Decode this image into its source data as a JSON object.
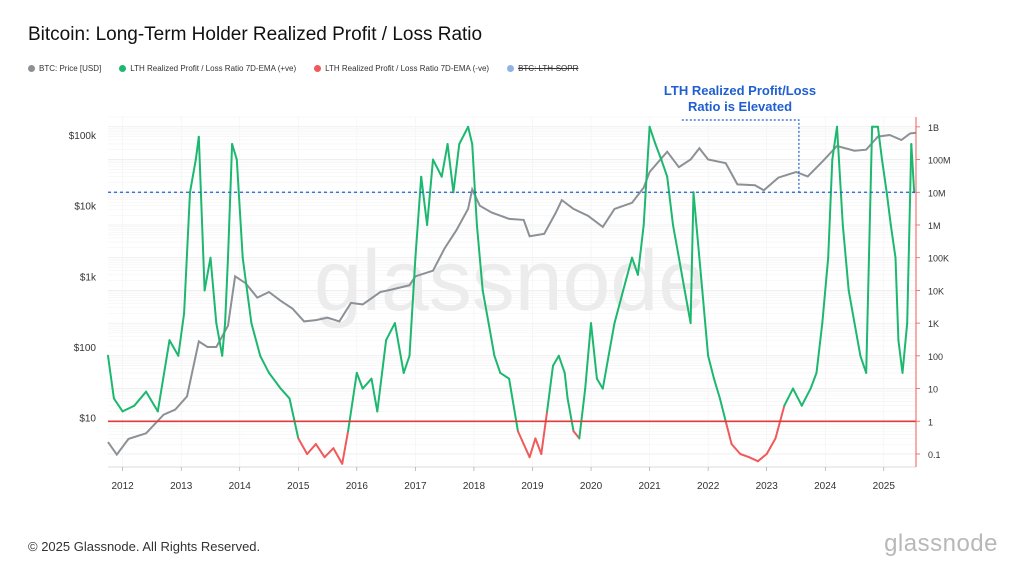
{
  "title": "Bitcoin: Long-Term Holder Realized Profit / Loss Ratio",
  "legend": [
    {
      "label": "BTC: Price [USD]",
      "color": "#8c9196",
      "struck": false
    },
    {
      "label": "LTH Realized Profit / Loss Ratio 7D-EMA (+ve)",
      "color": "#1db86f",
      "struck": false
    },
    {
      "label": "LTH Realized Profit / Loss Ratio 7D-EMA (-ve)",
      "color": "#f05a5a",
      "struck": false
    },
    {
      "label": "BTC: LTH-SOPR",
      "color": "#8fb2e8",
      "struck": true
    }
  ],
  "annotation": {
    "line1": "LTH Realized Profit/Loss",
    "line2": "Ratio is Elevated"
  },
  "watermark": "glassnode",
  "footer": "© 2025 Glassnode. All Rights Reserved.",
  "brand": "glassnode",
  "chart_data": {
    "type": "line",
    "title": "Bitcoin: Long-Term Holder Realized Profit / Loss Ratio",
    "x_ticks": [
      "2012",
      "2013",
      "2014",
      "2015",
      "2016",
      "2017",
      "2018",
      "2019",
      "2020",
      "2021",
      "2022",
      "2023",
      "2024",
      "2025"
    ],
    "y_left_ticks": [
      "$100k",
      "$10k",
      "$1k",
      "$100",
      "$10"
    ],
    "y_right_ticks": [
      "1B",
      "100M",
      "10M",
      "1M",
      "100K",
      "10K",
      "1K",
      "100",
      "10",
      "1",
      "0.1"
    ],
    "y_left_scale": "log",
    "y_right_scale": "log",
    "reference_line_ratio": 1,
    "elevated_threshold_ratio": 10000000,
    "colors": {
      "price": "#8c9196",
      "pos": "#1db86f",
      "neg": "#f05a5a",
      "ref": "#e03a3a",
      "dotted": "#1f5fd1"
    },
    "series": [
      {
        "name": "BTC: Price [USD]",
        "axis": "left",
        "points": [
          [
            2011.75,
            4.5
          ],
          [
            2011.9,
            3
          ],
          [
            2012.1,
            5
          ],
          [
            2012.4,
            6
          ],
          [
            2012.7,
            11
          ],
          [
            2012.9,
            13
          ],
          [
            2013.1,
            20
          ],
          [
            2013.3,
            120
          ],
          [
            2013.45,
            100
          ],
          [
            2013.6,
            100
          ],
          [
            2013.8,
            200
          ],
          [
            2013.92,
            1000
          ],
          [
            2014.1,
            800
          ],
          [
            2014.3,
            500
          ],
          [
            2014.5,
            600
          ],
          [
            2014.7,
            450
          ],
          [
            2014.9,
            350
          ],
          [
            2015.1,
            230
          ],
          [
            2015.3,
            240
          ],
          [
            2015.5,
            260
          ],
          [
            2015.7,
            230
          ],
          [
            2015.9,
            420
          ],
          [
            2016.1,
            400
          ],
          [
            2016.4,
            600
          ],
          [
            2016.6,
            650
          ],
          [
            2016.9,
            750
          ],
          [
            2017.0,
            1000
          ],
          [
            2017.3,
            1200
          ],
          [
            2017.5,
            2500
          ],
          [
            2017.7,
            4500
          ],
          [
            2017.9,
            9000
          ],
          [
            2017.97,
            17000
          ],
          [
            2018.1,
            10000
          ],
          [
            2018.3,
            8000
          ],
          [
            2018.6,
            6500
          ],
          [
            2018.85,
            6300
          ],
          [
            2018.95,
            3700
          ],
          [
            2019.2,
            4000
          ],
          [
            2019.4,
            8000
          ],
          [
            2019.5,
            12000
          ],
          [
            2019.7,
            9000
          ],
          [
            2019.95,
            7200
          ],
          [
            2020.2,
            5000
          ],
          [
            2020.4,
            9000
          ],
          [
            2020.7,
            11000
          ],
          [
            2020.9,
            18000
          ],
          [
            2021.0,
            30000
          ],
          [
            2021.3,
            58000
          ],
          [
            2021.5,
            35000
          ],
          [
            2021.7,
            45000
          ],
          [
            2021.85,
            65000
          ],
          [
            2022.0,
            45000
          ],
          [
            2022.3,
            40000
          ],
          [
            2022.5,
            20000
          ],
          [
            2022.8,
            19500
          ],
          [
            2022.95,
            16500
          ],
          [
            2023.2,
            25000
          ],
          [
            2023.5,
            30000
          ],
          [
            2023.7,
            26000
          ],
          [
            2023.95,
            42000
          ],
          [
            2024.2,
            70000
          ],
          [
            2024.5,
            60000
          ],
          [
            2024.7,
            62000
          ],
          [
            2024.9,
            95000
          ],
          [
            2025.1,
            100000
          ],
          [
            2025.3,
            85000
          ],
          [
            2025.45,
            105000
          ],
          [
            2025.55,
            108000
          ]
        ]
      },
      {
        "name": "LTH Realized Profit / Loss Ratio 7D-EMA",
        "axis": "right",
        "points": [
          [
            2011.75,
            100
          ],
          [
            2011.85,
            5
          ],
          [
            2012.0,
            2
          ],
          [
            2012.2,
            3
          ],
          [
            2012.4,
            8
          ],
          [
            2012.6,
            2
          ],
          [
            2012.8,
            300
          ],
          [
            2012.95,
            100
          ],
          [
            2013.05,
            2000
          ],
          [
            2013.15,
            10000000
          ],
          [
            2013.25,
            100000000
          ],
          [
            2013.3,
            500000000
          ],
          [
            2013.4,
            10000
          ],
          [
            2013.5,
            100000
          ],
          [
            2013.6,
            1000
          ],
          [
            2013.7,
            100
          ],
          [
            2013.75,
            1000
          ],
          [
            2013.8,
            100000
          ],
          [
            2013.87,
            300000000
          ],
          [
            2013.95,
            100000000
          ],
          [
            2014.05,
            100000
          ],
          [
            2014.2,
            1000
          ],
          [
            2014.35,
            100
          ],
          [
            2014.5,
            30
          ],
          [
            2014.7,
            10
          ],
          [
            2014.85,
            5
          ],
          [
            2015.0,
            0.3
          ],
          [
            2015.15,
            0.1
          ],
          [
            2015.3,
            0.2
          ],
          [
            2015.45,
            0.08
          ],
          [
            2015.6,
            0.15
          ],
          [
            2015.75,
            0.05
          ],
          [
            2015.85,
            0.5
          ],
          [
            2016.0,
            30
          ],
          [
            2016.1,
            10
          ],
          [
            2016.25,
            20
          ],
          [
            2016.35,
            2
          ],
          [
            2016.5,
            300
          ],
          [
            2016.65,
            1000
          ],
          [
            2016.8,
            30
          ],
          [
            2016.9,
            100
          ],
          [
            2017.0,
            100000
          ],
          [
            2017.1,
            30000000
          ],
          [
            2017.2,
            1000000
          ],
          [
            2017.3,
            100000000
          ],
          [
            2017.45,
            30000000
          ],
          [
            2017.55,
            300000000
          ],
          [
            2017.65,
            10000000
          ],
          [
            2017.75,
            300000000
          ],
          [
            2017.9,
            1000000000
          ],
          [
            2017.97,
            300000000
          ],
          [
            2018.05,
            1000000
          ],
          [
            2018.15,
            10000
          ],
          [
            2018.25,
            1000
          ],
          [
            2018.35,
            100
          ],
          [
            2018.45,
            30
          ],
          [
            2018.6,
            20
          ],
          [
            2018.75,
            0.5
          ],
          [
            2018.85,
            0.2
          ],
          [
            2018.95,
            0.08
          ],
          [
            2019.05,
            0.3
          ],
          [
            2019.15,
            0.1
          ],
          [
            2019.25,
            2
          ],
          [
            2019.35,
            50
          ],
          [
            2019.45,
            100
          ],
          [
            2019.55,
            30
          ],
          [
            2019.6,
            5
          ],
          [
            2019.7,
            0.5
          ],
          [
            2019.8,
            0.3
          ],
          [
            2019.9,
            10
          ],
          [
            2020.0,
            1000
          ],
          [
            2020.1,
            20
          ],
          [
            2020.2,
            10
          ],
          [
            2020.3,
            100
          ],
          [
            2020.4,
            1000
          ],
          [
            2020.55,
            10000
          ],
          [
            2020.7,
            100000
          ],
          [
            2020.8,
            30000
          ],
          [
            2020.9,
            1000000
          ],
          [
            2021.0,
            1000000000
          ],
          [
            2021.1,
            300000000
          ],
          [
            2021.2,
            100000000
          ],
          [
            2021.3,
            30000000
          ],
          [
            2021.4,
            1000000
          ],
          [
            2021.5,
            100000
          ],
          [
            2021.6,
            10000
          ],
          [
            2021.7,
            1000
          ],
          [
            2021.75,
            10000000
          ],
          [
            2021.8,
            1000000
          ],
          [
            2021.9,
            10000
          ],
          [
            2022.0,
            100
          ],
          [
            2022.1,
            20
          ],
          [
            2022.2,
            5
          ],
          [
            2022.3,
            1
          ],
          [
            2022.4,
            0.2
          ],
          [
            2022.55,
            0.1
          ],
          [
            2022.7,
            0.08
          ],
          [
            2022.85,
            0.06
          ],
          [
            2023.0,
            0.1
          ],
          [
            2023.15,
            0.3
          ],
          [
            2023.3,
            3
          ],
          [
            2023.45,
            10
          ],
          [
            2023.6,
            3
          ],
          [
            2023.75,
            10
          ],
          [
            2023.85,
            30
          ],
          [
            2023.95,
            1000
          ],
          [
            2024.05,
            100000
          ],
          [
            2024.12,
            100000000
          ],
          [
            2024.2,
            1000000000
          ],
          [
            2024.3,
            1000000
          ],
          [
            2024.4,
            10000
          ],
          [
            2024.5,
            1000
          ],
          [
            2024.6,
            100
          ],
          [
            2024.7,
            30
          ],
          [
            2024.8,
            1000000000
          ],
          [
            2024.9,
            1000000000
          ],
          [
            2024.97,
            100000000
          ],
          [
            2025.05,
            10000000
          ],
          [
            2025.12,
            1000000
          ],
          [
            2025.2,
            100000
          ],
          [
            2025.25,
            300
          ],
          [
            2025.32,
            30
          ],
          [
            2025.4,
            1000
          ],
          [
            2025.47,
            300000000
          ],
          [
            2025.52,
            10000000
          ]
        ]
      }
    ]
  }
}
